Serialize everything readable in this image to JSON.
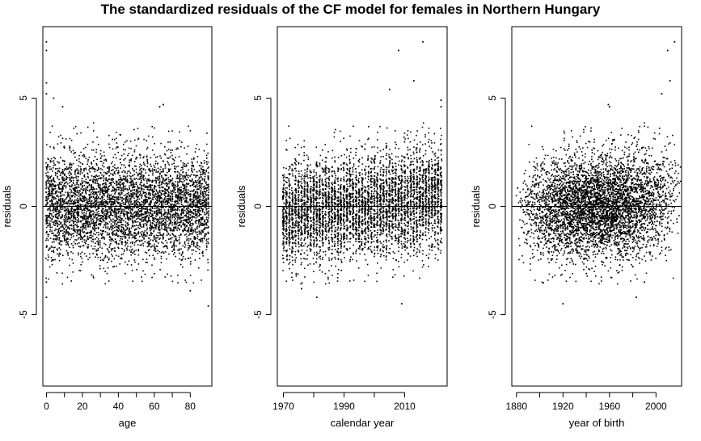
{
  "title": "The standardized residuals of the CF model for females in Northern Hungary",
  "chart_data": [
    {
      "type": "scatter",
      "xlabel": "age",
      "ylabel": "residuals",
      "xlim": [
        -2,
        92
      ],
      "ylim": [
        -8.3,
        8.3
      ],
      "xticks": [
        0,
        20,
        40,
        60,
        80
      ],
      "yticks": [
        -5,
        0,
        5
      ],
      "hline": 0,
      "color": "#000000",
      "points_note_count": 5000,
      "outliers": [
        {
          "x": 0,
          "y": 7.6
        },
        {
          "x": 0,
          "y": 7.2
        },
        {
          "x": 0,
          "y": 5.7
        },
        {
          "x": 0,
          "y": 5.2
        },
        {
          "x": 4,
          "y": 5.0
        },
        {
          "x": 9,
          "y": 4.6
        },
        {
          "x": 65,
          "y": 4.7
        },
        {
          "x": 63,
          "y": 4.6
        },
        {
          "x": 0,
          "y": -3.5
        },
        {
          "x": 0,
          "y": -4.2
        },
        {
          "x": 90,
          "y": -4.6
        },
        {
          "x": 80,
          "y": -3.9
        }
      ]
    },
    {
      "type": "scatter",
      "xlabel": "calendar year",
      "ylabel": "residuals",
      "xlim": [
        1968,
        2024
      ],
      "ylim": [
        -8.3,
        8.3
      ],
      "xticks": [
        1970,
        1990,
        2010
      ],
      "yticks": [
        -5,
        0,
        5
      ],
      "hline": 0,
      "color": "#000000",
      "points_note_count": 5000,
      "outliers": [
        {
          "x": 2008,
          "y": 7.2
        },
        {
          "x": 2016,
          "y": 7.6
        },
        {
          "x": 2013,
          "y": 5.8
        },
        {
          "x": 2005,
          "y": 5.4
        },
        {
          "x": 2022,
          "y": 4.9
        },
        {
          "x": 2022,
          "y": 4.6
        },
        {
          "x": 2009,
          "y": -4.5
        },
        {
          "x": 1976,
          "y": -3.8
        },
        {
          "x": 1981,
          "y": -4.2
        }
      ]
    },
    {
      "type": "scatter",
      "xlabel": "year of birth",
      "ylabel": "residuals",
      "xlim": [
        1876,
        2022
      ],
      "ylim": [
        -8.3,
        8.3
      ],
      "xticks": [
        1880,
        1920,
        1960,
        2000
      ],
      "yticks": [
        -5,
        0,
        5
      ],
      "hline": 0,
      "color": "#000000",
      "points_note_count": 5000,
      "outliers": [
        {
          "x": 2016,
          "y": 7.6
        },
        {
          "x": 2010,
          "y": 7.2
        },
        {
          "x": 2012,
          "y": 5.8
        },
        {
          "x": 2005,
          "y": 5.2
        },
        {
          "x": 1959,
          "y": 4.7
        },
        {
          "x": 1960,
          "y": 4.6
        },
        {
          "x": 1920,
          "y": -4.5
        },
        {
          "x": 1983,
          "y": -4.2
        },
        {
          "x": 1990,
          "y": -3.5
        }
      ]
    }
  ]
}
